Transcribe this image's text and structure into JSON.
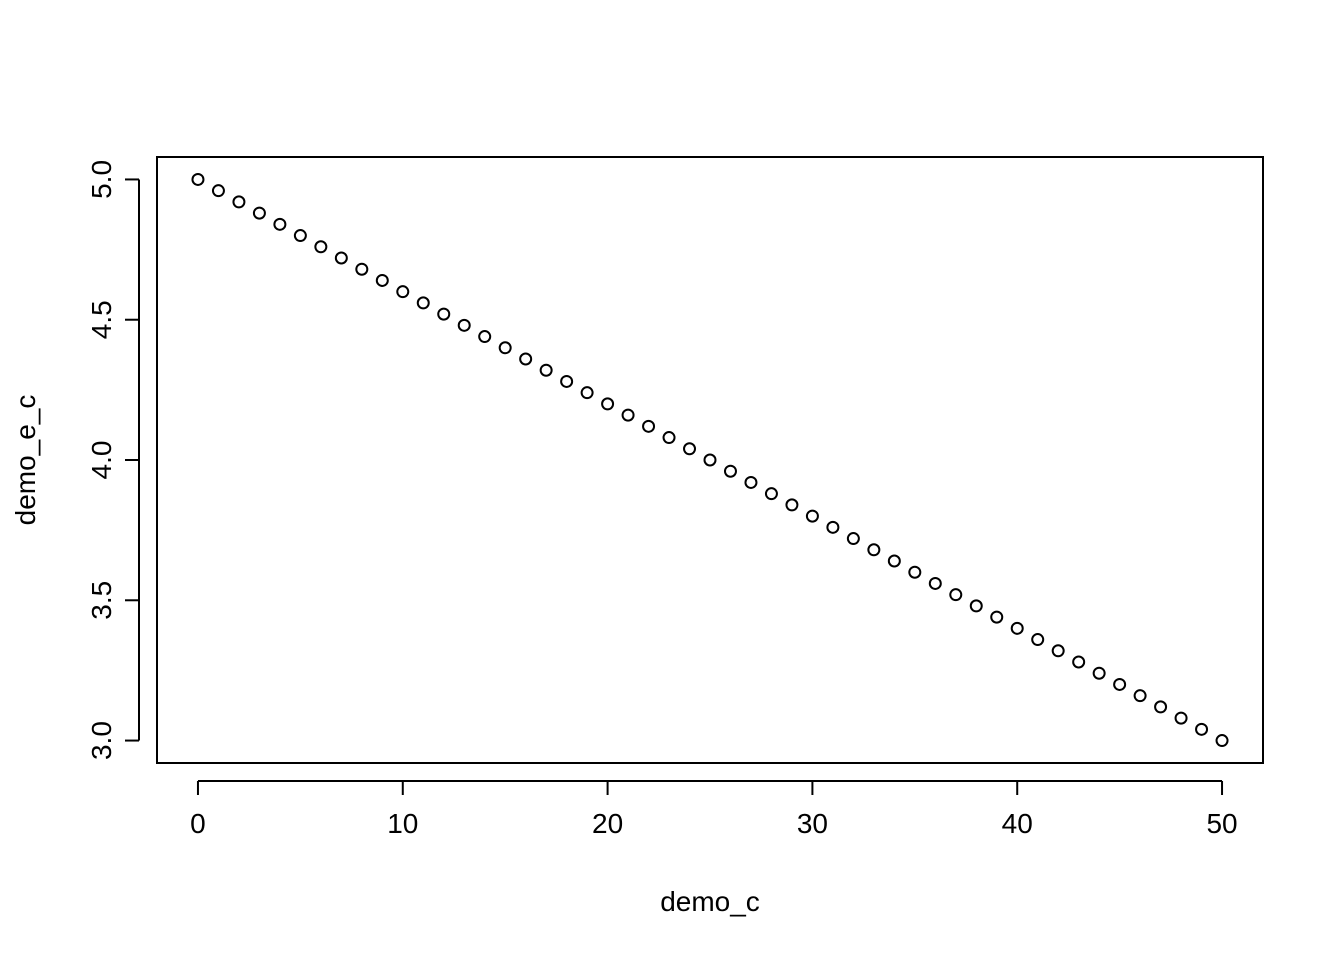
{
  "chart_data": {
    "type": "scatter",
    "title": "",
    "xlabel": "demo_c",
    "ylabel": "demo_e_c",
    "xlim": [
      -2,
      52
    ],
    "ylim": [
      2.92,
      5.08
    ],
    "xticks": [
      0,
      10,
      20,
      30,
      40,
      50
    ],
    "xtick_labels": [
      "0",
      "10",
      "20",
      "30",
      "40",
      "50"
    ],
    "yticks": [
      3.0,
      3.5,
      4.0,
      4.5,
      5.0
    ],
    "ytick_labels": [
      "3.0",
      "3.5",
      "4.0",
      "4.5",
      "5.0"
    ],
    "grid": false,
    "marker": "open-circle",
    "colors": {
      "point": "#000000",
      "axis": "#000000",
      "background": "#ffffff"
    },
    "series": [
      {
        "x": [
          0,
          1,
          2,
          3,
          4,
          5,
          6,
          7,
          8,
          9,
          10,
          11,
          12,
          13,
          14,
          15,
          16,
          17,
          18,
          19,
          20,
          21,
          22,
          23,
          24,
          25,
          26,
          27,
          28,
          29,
          30,
          31,
          32,
          33,
          34,
          35,
          36,
          37,
          38,
          39,
          40,
          41,
          42,
          43,
          44,
          45,
          46,
          47,
          48,
          49,
          50
        ],
        "y": [
          5.0,
          4.96,
          4.92,
          4.88,
          4.84,
          4.8,
          4.76,
          4.72,
          4.68,
          4.64,
          4.6,
          4.56,
          4.52,
          4.48,
          4.44,
          4.4,
          4.36,
          4.32,
          4.28,
          4.24,
          4.2,
          4.16,
          4.12,
          4.08,
          4.04,
          4.0,
          3.96,
          3.92,
          3.88,
          3.84,
          3.8,
          3.76,
          3.72,
          3.68,
          3.64,
          3.6,
          3.56,
          3.52,
          3.48,
          3.44,
          3.4,
          3.36,
          3.32,
          3.28,
          3.24,
          3.2,
          3.16,
          3.12,
          3.08,
          3.04,
          3.0
        ]
      }
    ]
  }
}
